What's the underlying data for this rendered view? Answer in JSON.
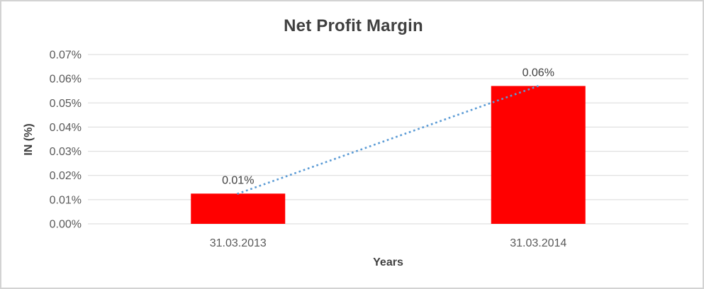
{
  "chart": {
    "title": "Net Profit Margin",
    "y_axis_title": "IN (%)",
    "x_axis_title": "Years"
  },
  "chart_data": {
    "type": "bar",
    "title": "Net Profit Margin",
    "xlabel": "Years",
    "ylabel": "IN (%)",
    "categories": [
      "31.03.2013",
      "31.03.2014"
    ],
    "values": [
      0.0125,
      0.057
    ],
    "data_labels": [
      "0.01%",
      "0.06%"
    ],
    "y_ticks": [
      "0.00%",
      "0.01%",
      "0.02%",
      "0.03%",
      "0.04%",
      "0.05%",
      "0.06%",
      "0.07%"
    ],
    "y_tick_step": 0.01,
    "ylim": [
      0,
      0.07
    ],
    "grid": true,
    "legend": false,
    "trendline": {
      "type": "linear",
      "style": "dotted",
      "connects": "bar tops"
    }
  },
  "colors": {
    "bar_fill": "#FF0000",
    "trendline": "#5B9BD5",
    "gridline": "#D9D9D9",
    "tick_text": "#595959",
    "label_text": "#404040",
    "frame_border": "#D3D3D3",
    "background": "#FFFFFF"
  }
}
